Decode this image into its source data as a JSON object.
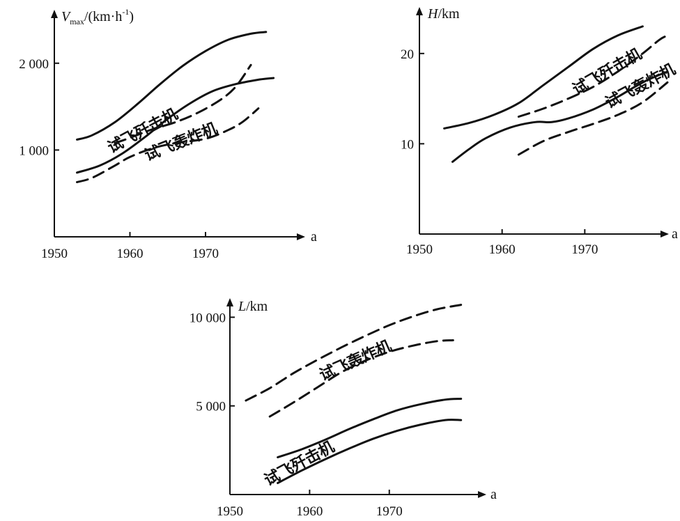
{
  "chart_data": [
    {
      "type": "line",
      "ylabel": {
        "symbol": "V",
        "subscript": "max",
        "unit": "/(km·h",
        "sup": "-1",
        "close": ")"
      },
      "xlabel": "a",
      "x_ticks": [
        "1950",
        "1960",
        "1970"
      ],
      "y_ticks": [
        "1 000",
        "2 000"
      ],
      "y_tick_values": [
        1000,
        2000
      ],
      "xlim": [
        1950,
        1983
      ],
      "ylim": [
        0,
        2600
      ],
      "grid": false,
      "annotations": [
        {
          "text": "试飞歼击机",
          "x": 1962,
          "y": 1170,
          "angle": -28
        },
        {
          "text": "试飞轰炸机",
          "x": 1967,
          "y": 1040,
          "angle": -22
        }
      ],
      "series": [
        {
          "style": "solid",
          "x": [
            1953,
            1955,
            1958,
            1961,
            1964,
            1967,
            1970,
            1973,
            1976,
            1978
          ],
          "values": [
            1120,
            1170,
            1320,
            1530,
            1760,
            1970,
            2140,
            2270,
            2340,
            2360
          ]
        },
        {
          "style": "solid",
          "x": [
            1953,
            1956,
            1959,
            1962,
            1965,
            1968,
            1971,
            1974,
            1977,
            1979
          ],
          "values": [
            740,
            820,
            960,
            1150,
            1360,
            1540,
            1680,
            1760,
            1810,
            1830
          ]
        },
        {
          "style": "dashed",
          "x": [
            1958,
            1960,
            1963,
            1966,
            1969,
            1972,
            1974,
            1976
          ],
          "values": [
            1080,
            1140,
            1240,
            1320,
            1430,
            1580,
            1730,
            1980
          ]
        },
        {
          "style": "dashed",
          "x": [
            1953,
            1955,
            1958,
            1960,
            1963,
            1966,
            1970,
            1973,
            1975,
            1977
          ],
          "values": [
            630,
            680,
            820,
            920,
            1020,
            1080,
            1130,
            1230,
            1330,
            1480
          ]
        }
      ]
    },
    {
      "type": "line",
      "ylabel": {
        "symbol": "H",
        "unit": "/km"
      },
      "xlabel": "a",
      "x_ticks": [
        "1950",
        "1960",
        "1970"
      ],
      "y_ticks": [
        "10",
        "20"
      ],
      "y_tick_values": [
        10,
        20
      ],
      "xlim": [
        1950,
        1980
      ],
      "ylim": [
        0,
        25
      ],
      "grid": false,
      "annotations": [
        {
          "text": "试飞歼击机",
          "x": 1973,
          "y": 17.5,
          "angle": -30
        },
        {
          "text": "试飞轰炸机",
          "x": 1977,
          "y": 15.9,
          "angle": -28
        }
      ],
      "series": [
        {
          "style": "solid",
          "x": [
            1953,
            1956,
            1959,
            1962,
            1965,
            1968,
            1971,
            1974,
            1977
          ],
          "values": [
            11.7,
            12.3,
            13.2,
            14.5,
            16.5,
            18.5,
            20.5,
            22,
            23
          ]
        },
        {
          "style": "solid",
          "x": [
            1954,
            1956,
            1958,
            1961,
            1964,
            1966,
            1968,
            1971,
            1974,
            1977,
            1980
          ],
          "values": [
            8,
            9.4,
            10.6,
            11.8,
            12.4,
            12.4,
            12.8,
            13.8,
            15.2,
            16.8,
            18
          ]
        },
        {
          "style": "dashed",
          "x": [
            1962,
            1965,
            1968,
            1971,
            1974,
            1977,
            1979,
            1980
          ],
          "values": [
            13,
            13.9,
            15,
            16.3,
            18,
            20,
            21.5,
            22
          ]
        },
        {
          "style": "dashed",
          "x": [
            1962,
            1965,
            1968,
            1971,
            1974,
            1977,
            1980
          ],
          "values": [
            8.8,
            10.3,
            11.3,
            12.2,
            13.2,
            14.6,
            16.8
          ]
        }
      ]
    },
    {
      "type": "line",
      "ylabel": {
        "symbol": "L",
        "unit": "/km"
      },
      "xlabel": "a",
      "x_ticks": [
        "1950",
        "1960",
        "1970"
      ],
      "y_ticks": [
        "5 000",
        "10 000"
      ],
      "y_tick_values": [
        5000,
        10000
      ],
      "xlim": [
        1950,
        1982
      ],
      "ylim": [
        0,
        11000
      ],
      "grid": false,
      "annotations": [
        {
          "text": "试飞轰炸机",
          "x": 1966,
          "y": 7300,
          "angle": -24
        },
        {
          "text": "试飞歼击机",
          "x": 1959,
          "y": 1500,
          "angle": -28
        }
      ],
      "series": [
        {
          "style": "dashed",
          "x": [
            1952,
            1955,
            1958,
            1961,
            1964,
            1967,
            1970,
            1973,
            1976,
            1979
          ],
          "values": [
            5300,
            6000,
            6850,
            7600,
            8300,
            8950,
            9550,
            10050,
            10450,
            10700
          ]
        },
        {
          "style": "dashed",
          "x": [
            1955,
            1958,
            1961,
            1964,
            1967,
            1970,
            1973,
            1976,
            1978
          ],
          "values": [
            4400,
            5200,
            6050,
            6900,
            7550,
            8050,
            8400,
            8650,
            8700
          ]
        },
        {
          "style": "solid",
          "x": [
            1956,
            1959,
            1962,
            1965,
            1968,
            1971,
            1974,
            1977,
            1979
          ],
          "values": [
            2100,
            2550,
            3100,
            3700,
            4250,
            4750,
            5100,
            5350,
            5400
          ]
        },
        {
          "style": "solid",
          "x": [
            1956,
            1959,
            1962,
            1965,
            1968,
            1971,
            1974,
            1977,
            1979
          ],
          "values": [
            650,
            1350,
            2000,
            2600,
            3150,
            3600,
            3950,
            4200,
            4200
          ]
        }
      ]
    }
  ]
}
